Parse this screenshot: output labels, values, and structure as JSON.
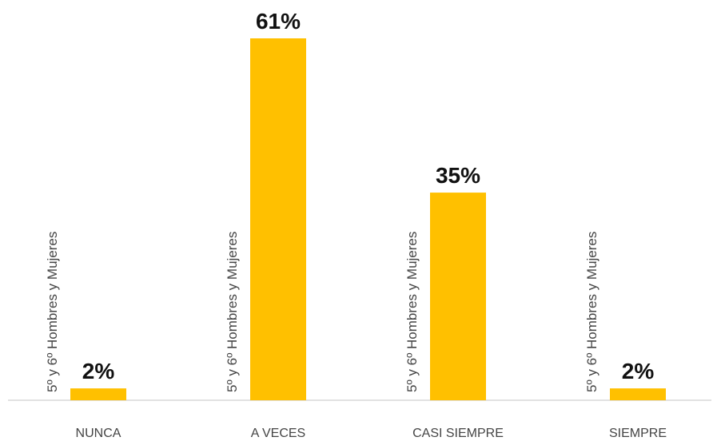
{
  "chart_data": {
    "type": "bar",
    "categories": [
      "NUNCA",
      "A VECES",
      "CASI SIEMPRE",
      "SIEMPRE"
    ],
    "series": [
      {
        "name": "5º y 6º Hombres y Mujeres",
        "values": [
          2,
          61,
          35,
          2
        ],
        "labels": [
          "2%",
          "61%",
          "35%",
          "2%"
        ]
      }
    ],
    "unit": "%",
    "ylim": [
      0,
      61
    ],
    "grid": false,
    "legend": "none",
    "colors": {
      "bar": "#FFC000",
      "axis": "#D9D9D9"
    }
  }
}
